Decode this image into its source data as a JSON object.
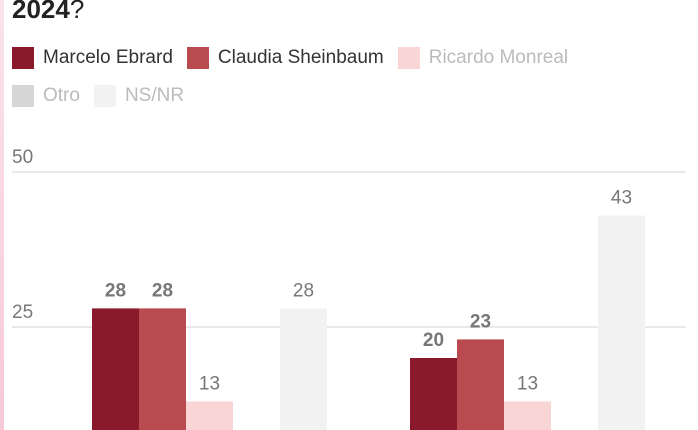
{
  "chart_data": {
    "type": "bar",
    "title": [
      "2024",
      "?"
    ],
    "series": [
      {
        "name": "Marcelo Ebrard",
        "color": "#8a1a2b",
        "legend_text_color": "#333",
        "label_bold": true,
        "values": [
          28,
          20
        ]
      },
      {
        "name": "Claudia Sheinbaum",
        "color": "#b94a4f",
        "legend_text_color": "#333",
        "label_bold": true,
        "values": [
          28,
          23
        ]
      },
      {
        "name": "Ricardo Monreal",
        "color": "#f9d5d5",
        "legend_text_color": "#bbb",
        "label_bold": false,
        "values": [
          13,
          13
        ]
      },
      {
        "name": "Otro",
        "color": "#d6d6d6",
        "legend_text_color": "#bbb",
        "label_bold": false,
        "values": [
          null,
          null
        ]
      },
      {
        "name": "NS/NR",
        "color": "#f2f2f2",
        "legend_text_color": "#bbb",
        "label_bold": false,
        "values": [
          28,
          43
        ]
      }
    ],
    "ylim": [
      0,
      50
    ],
    "yticks": [
      25,
      50
    ],
    "grid": true
  }
}
